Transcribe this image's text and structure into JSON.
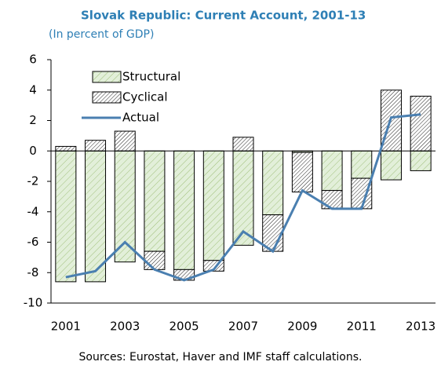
{
  "chart_data": {
    "type": "bar",
    "stacked": true,
    "title": "Slovak Republic: Current Account, 2001-13",
    "subtitle": "(In percent of GDP)",
    "source": "Sources: Eurostat, Haver and IMF staff calculations.",
    "categories": [
      "2001",
      null,
      "2003",
      null,
      "2005",
      null,
      "2007",
      null,
      "2009",
      null,
      "2011",
      null,
      "2013"
    ],
    "series": [
      {
        "name": "Structural",
        "type": "bar",
        "color": "#e2efd9",
        "values": [
          -8.6,
          -8.6,
          -7.3,
          -6.6,
          -7.8,
          -7.2,
          -6.2,
          -4.2,
          -0.1,
          -2.6,
          -1.8,
          -1.9,
          -1.3
        ]
      },
      {
        "name": "Cyclical",
        "type": "bar",
        "color": "#ffffff",
        "values": [
          0.3,
          0.7,
          1.3,
          -1.2,
          -0.7,
          -0.7,
          0.9,
          -2.4,
          -2.6,
          -1.2,
          -2.0,
          4.0,
          3.6
        ]
      },
      {
        "name": "Actual",
        "type": "line",
        "color": "#4a7fb0",
        "values": [
          -8.3,
          -7.9,
          -6.0,
          -7.8,
          -8.5,
          -7.8,
          -5.3,
          -6.6,
          -2.6,
          -3.8,
          -3.8,
          2.2,
          2.4
        ]
      }
    ],
    "ylim": [
      -10,
      6
    ],
    "yticks": [
      -10,
      -8,
      -6,
      -4,
      -2,
      0,
      2,
      4,
      6
    ],
    "legend": "upper left"
  }
}
